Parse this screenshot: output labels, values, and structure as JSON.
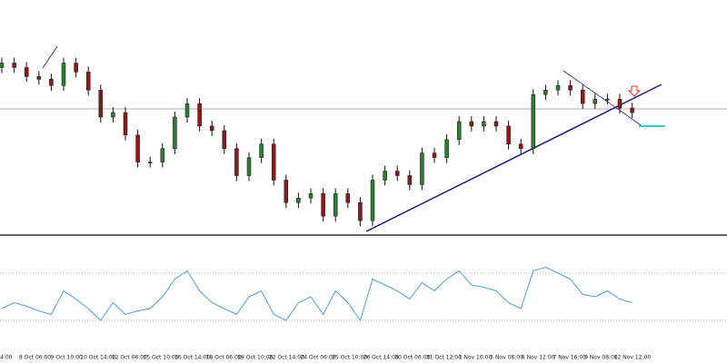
{
  "chart_data": [
    {
      "type": "candlestick",
      "open": [
        185,
        190,
        185,
        175,
        172,
        165,
        190,
        180,
        160,
        130,
        135,
        110,
        80,
        80,
        95,
        130,
        145,
        120,
        115,
        95,
        65,
        85,
        100,
        60,
        35,
        40,
        45,
        20,
        45,
        35,
        15,
        60,
        70,
        65,
        55,
        90,
        85,
        105,
        125,
        120,
        125,
        120,
        100,
        95,
        155,
        160,
        165,
        160,
        145,
        150,
        150,
        140
      ],
      "high": [
        196,
        196,
        191,
        181,
        178,
        196,
        196,
        186,
        166,
        141,
        141,
        116,
        86,
        101,
        136,
        151,
        151,
        126,
        121,
        101,
        91,
        106,
        106,
        66,
        46,
        51,
        51,
        51,
        51,
        41,
        66,
        76,
        76,
        71,
        96,
        96,
        111,
        131,
        131,
        131,
        131,
        126,
        106,
        161,
        166,
        171,
        171,
        166,
        156,
        156,
        156,
        146
      ],
      "low": [
        179,
        179,
        169,
        166,
        159,
        159,
        174,
        154,
        124,
        124,
        104,
        74,
        74,
        74,
        89,
        124,
        114,
        109,
        89,
        59,
        59,
        79,
        54,
        29,
        29,
        34,
        14,
        14,
        29,
        9,
        9,
        54,
        59,
        49,
        49,
        79,
        79,
        99,
        114,
        114,
        114,
        94,
        89,
        89,
        149,
        154,
        154,
        139,
        139,
        144,
        134,
        129
      ],
      "close": [
        190,
        185,
        175,
        172,
        165,
        190,
        180,
        160,
        130,
        135,
        110,
        80,
        80,
        95,
        130,
        145,
        120,
        115,
        95,
        65,
        85,
        100,
        60,
        35,
        40,
        45,
        20,
        45,
        35,
        15,
        60,
        70,
        65,
        55,
        90,
        85,
        105,
        125,
        120,
        125,
        120,
        100,
        95,
        155,
        160,
        165,
        160,
        145,
        150,
        150,
        140,
        135
      ],
      "up_color": "#2e7d32",
      "down_color": "#8b1a1a",
      "ylim": [
        0,
        260
      ]
    },
    {
      "type": "line",
      "values": [
        40,
        45,
        42,
        38,
        35,
        55,
        48,
        40,
        30,
        45,
        35,
        38,
        40,
        50,
        65,
        72,
        55,
        45,
        40,
        35,
        50,
        55,
        35,
        30,
        45,
        50,
        35,
        55,
        45,
        30,
        65,
        60,
        55,
        48,
        62,
        55,
        65,
        72,
        60,
        58,
        55,
        45,
        40,
        72,
        75,
        70,
        65,
        52,
        50,
        55,
        48,
        45
      ],
      "color": "#4a9fe0",
      "levels": [
        70,
        30
      ],
      "ylim": [
        0,
        100
      ],
      "x_labels": [
        "4:00",
        "8 Oct 06:00",
        "9 Oct 10:00",
        "10 Oct 14:00",
        "12 Oct 06:00",
        "15 Oct 10:00",
        "16 Oct 14:00",
        "18 Oct 06:00",
        "19 Oct 10:00",
        "22 Oct 14:00",
        "24 Oct 06:00",
        "25 Oct 10:00",
        "26 Oct 14:00",
        "30 Oct 06:00",
        "31 Oct 12:00",
        "1 Nov 16:00",
        "5 Nov 08:00",
        "6 Nov 12:00",
        "7 Nov 16:00",
        "9 Nov 08:00",
        "12 Nov 12:00"
      ]
    }
  ]
}
